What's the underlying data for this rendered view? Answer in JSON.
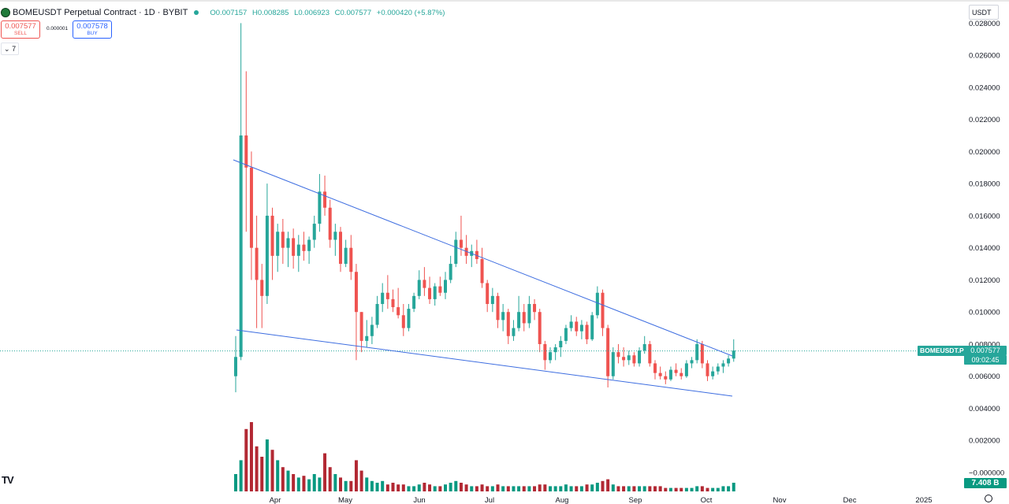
{
  "header": {
    "symbol_title": "BOMEUSDT Perpetual Contract · 1D · BYBIT",
    "open": "O0.007157",
    "high": "H0.008285",
    "low": "L0.006923",
    "close": "C0.007577",
    "change": "+0.000420 (+5.87%)"
  },
  "trade": {
    "sell_price": "0.007577",
    "sell_label": "SELL",
    "spread": "0.000001",
    "buy_price": "0.007578",
    "buy_label": "BUY"
  },
  "indicators_toggle": "7",
  "currency": "USDT",
  "price_scale": {
    "labels": [
      "0.028000",
      "0.026000",
      "0.024000",
      "0.022000",
      "0.020000",
      "0.018000",
      "0.016000",
      "0.014000",
      "0.012000",
      "0.010000",
      "0.008000",
      "0.006000",
      "0.004000",
      "0.002000",
      "−0.000000"
    ]
  },
  "time_axis": {
    "labels": [
      "Apr",
      "May",
      "Jun",
      "Jul",
      "Aug",
      "Sep",
      "Oct",
      "Nov",
      "Dec",
      "2025"
    ]
  },
  "last_price": {
    "symbol_label": "BOMEUSDT.P",
    "price": "0.007577",
    "countdown": "09:02:45"
  },
  "volume": {
    "last_label": "7.408 B"
  },
  "colors": {
    "up": "#26a69a",
    "down": "#ef5350",
    "trendline": "#3d6de0",
    "volume_up": "#089981",
    "volume_down": "#b22833"
  },
  "chart_data": {
    "type": "candlestick",
    "title": "BOMEUSDT Perpetual Contract · 1D · BYBIT",
    "ylim": [
      0,
      0.028
    ],
    "x_labels": [
      "Apr",
      "May",
      "Jun",
      "Jul",
      "Aug",
      "Sep",
      "Oct",
      "Nov",
      "Dec",
      "2025"
    ],
    "series": [
      {
        "name": "price",
        "values": [
          [
            0.006,
            0.0085,
            0.005,
            0.0072
          ],
          [
            0.0072,
            0.028,
            0.007,
            0.021
          ],
          [
            0.021,
            0.025,
            0.015,
            0.019
          ],
          [
            0.019,
            0.02,
            0.012,
            0.014
          ],
          [
            0.014,
            0.016,
            0.009,
            0.012
          ],
          [
            0.012,
            0.013,
            0.009,
            0.011
          ],
          [
            0.011,
            0.018,
            0.0105,
            0.016
          ],
          [
            0.016,
            0.0165,
            0.012,
            0.0135
          ],
          [
            0.0135,
            0.0155,
            0.0125,
            0.015
          ],
          [
            0.015,
            0.0158,
            0.013,
            0.014
          ],
          [
            0.014,
            0.015,
            0.0128,
            0.0146
          ],
          [
            0.0146,
            0.0152,
            0.0127,
            0.0135
          ],
          [
            0.0135,
            0.0148,
            0.0125,
            0.0142
          ],
          [
            0.0142,
            0.015,
            0.0132,
            0.0138
          ],
          [
            0.0138,
            0.0147,
            0.013,
            0.0145
          ],
          [
            0.0145,
            0.016,
            0.014,
            0.0155
          ],
          [
            0.0155,
            0.0186,
            0.015,
            0.0175
          ],
          [
            0.0175,
            0.0185,
            0.016,
            0.0165
          ],
          [
            0.0165,
            0.017,
            0.014,
            0.0145
          ],
          [
            0.0145,
            0.0155,
            0.0135,
            0.015
          ],
          [
            0.015,
            0.0153,
            0.0125,
            0.013
          ],
          [
            0.013,
            0.0145,
            0.0128,
            0.014
          ],
          [
            0.014,
            0.0148,
            0.012,
            0.0125
          ],
          [
            0.0125,
            0.013,
            0.007,
            0.01
          ],
          [
            0.01,
            0.01,
            0.0075,
            0.0082
          ],
          [
            0.0082,
            0.0095,
            0.0078,
            0.0085
          ],
          [
            0.0085,
            0.0097,
            0.008,
            0.0092
          ],
          [
            0.0092,
            0.011,
            0.009,
            0.0105
          ],
          [
            0.0105,
            0.0118,
            0.01,
            0.0112
          ],
          [
            0.0112,
            0.0123,
            0.0102,
            0.0108
          ],
          [
            0.0108,
            0.0114,
            0.01,
            0.0103
          ],
          [
            0.0103,
            0.0115,
            0.0096,
            0.0098
          ],
          [
            0.0098,
            0.0105,
            0.0085,
            0.009
          ],
          [
            0.009,
            0.0105,
            0.0088,
            0.0102
          ],
          [
            0.0102,
            0.0112,
            0.01,
            0.011
          ],
          [
            0.011,
            0.0126,
            0.0108,
            0.012
          ],
          [
            0.012,
            0.0128,
            0.011,
            0.0115
          ],
          [
            0.0115,
            0.0122,
            0.0105,
            0.0108
          ],
          [
            0.0108,
            0.0118,
            0.0104,
            0.0116
          ],
          [
            0.0116,
            0.0122,
            0.011,
            0.0112
          ],
          [
            0.0112,
            0.0125,
            0.0108,
            0.012
          ],
          [
            0.012,
            0.0135,
            0.0118,
            0.013
          ],
          [
            0.013,
            0.015,
            0.0128,
            0.0145
          ],
          [
            0.0145,
            0.016,
            0.0135,
            0.014
          ],
          [
            0.014,
            0.0148,
            0.013,
            0.0135
          ],
          [
            0.0135,
            0.0142,
            0.0128,
            0.0138
          ],
          [
            0.0138,
            0.0145,
            0.013,
            0.0133
          ],
          [
            0.0133,
            0.014,
            0.0115,
            0.0118
          ],
          [
            0.0118,
            0.012,
            0.01,
            0.0105
          ],
          [
            0.0105,
            0.0115,
            0.01,
            0.011
          ],
          [
            0.011,
            0.0112,
            0.009,
            0.0095
          ],
          [
            0.0095,
            0.0105,
            0.0088,
            0.01
          ],
          [
            0.01,
            0.0102,
            0.008,
            0.0085
          ],
          [
            0.0085,
            0.0095,
            0.0082,
            0.009
          ],
          [
            0.009,
            0.011,
            0.0088,
            0.01
          ],
          [
            0.01,
            0.0105,
            0.0088,
            0.0093
          ],
          [
            0.0093,
            0.011,
            0.009,
            0.0105
          ],
          [
            0.0105,
            0.0108,
            0.0095,
            0.01
          ],
          [
            0.01,
            0.0102,
            0.0075,
            0.008
          ],
          [
            0.008,
            0.0082,
            0.0064,
            0.007
          ],
          [
            0.007,
            0.0078,
            0.0068,
            0.0075
          ],
          [
            0.0075,
            0.008,
            0.007,
            0.0078
          ],
          [
            0.0078,
            0.0085,
            0.0072,
            0.0082
          ],
          [
            0.0082,
            0.0092,
            0.008,
            0.009
          ],
          [
            0.009,
            0.0098,
            0.0088,
            0.0094
          ],
          [
            0.0094,
            0.0097,
            0.0085,
            0.0088
          ],
          [
            0.0088,
            0.0095,
            0.0083,
            0.0092
          ],
          [
            0.0092,
            0.0094,
            0.008,
            0.0083
          ],
          [
            0.0083,
            0.01,
            0.0082,
            0.0098
          ],
          [
            0.0098,
            0.0116,
            0.0096,
            0.0112
          ],
          [
            0.0112,
            0.0114,
            0.0085,
            0.009
          ],
          [
            0.009,
            0.0092,
            0.0053,
            0.006
          ],
          [
            0.006,
            0.0078,
            0.0058,
            0.0075
          ],
          [
            0.0075,
            0.008,
            0.0068,
            0.0072
          ],
          [
            0.0072,
            0.0078,
            0.0066,
            0.007
          ],
          [
            0.007,
            0.0076,
            0.0067,
            0.0073
          ],
          [
            0.0073,
            0.0075,
            0.0066,
            0.0068
          ],
          [
            0.0068,
            0.0078,
            0.0066,
            0.0076
          ],
          [
            0.0076,
            0.0085,
            0.0074,
            0.008
          ],
          [
            0.008,
            0.0082,
            0.0066,
            0.0068
          ],
          [
            0.0068,
            0.007,
            0.0058,
            0.0062
          ],
          [
            0.0062,
            0.0066,
            0.0058,
            0.006
          ],
          [
            0.006,
            0.0063,
            0.0055,
            0.0058
          ],
          [
            0.0058,
            0.0066,
            0.0057,
            0.0064
          ],
          [
            0.0064,
            0.0068,
            0.006,
            0.0062
          ],
          [
            0.0062,
            0.0065,
            0.0058,
            0.006
          ],
          [
            0.006,
            0.007,
            0.0059,
            0.0068
          ],
          [
            0.0068,
            0.0072,
            0.0065,
            0.007
          ],
          [
            0.007,
            0.0083,
            0.0068,
            0.008
          ],
          [
            0.008,
            0.0082,
            0.0065,
            0.0068
          ],
          [
            0.0068,
            0.007,
            0.0057,
            0.006
          ],
          [
            0.006,
            0.0066,
            0.0058,
            0.0063
          ],
          [
            0.0063,
            0.0068,
            0.0061,
            0.0066
          ],
          [
            0.0066,
            0.007,
            0.0062,
            0.0068
          ],
          [
            0.0068,
            0.0073,
            0.0066,
            0.0071
          ],
          [
            0.0071,
            0.0083,
            0.0069,
            0.0076
          ]
        ]
      },
      {
        "name": "volume",
        "values": [
          10,
          18,
          36,
          40,
          26,
          20,
          30,
          24,
          18,
          14,
          12,
          10,
          8,
          9,
          7,
          10,
          8,
          22,
          14,
          10,
          8,
          6,
          6,
          18,
          12,
          8,
          6,
          5,
          6,
          4,
          5,
          4,
          4,
          3,
          3,
          4,
          5,
          4,
          3,
          3,
          4,
          5,
          6,
          5,
          4,
          3,
          3,
          4,
          3,
          3,
          4,
          3,
          3,
          3,
          3,
          3,
          3,
          3,
          4,
          4,
          3,
          3,
          3,
          4,
          3,
          3,
          3,
          4,
          4,
          5,
          6,
          7,
          4,
          3,
          3,
          3,
          3,
          3,
          3,
          3,
          3,
          3,
          2,
          2,
          2,
          2,
          2,
          2,
          3,
          3,
          2,
          2,
          2,
          3,
          3,
          5
        ]
      }
    ]
  }
}
